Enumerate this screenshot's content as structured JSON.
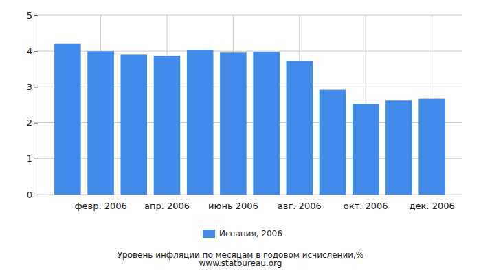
{
  "chart_data": {
    "type": "bar",
    "title": "Уровень инфляции по месяцам в годовом исчислении,%",
    "subtitle": "www.statbureau.org",
    "categories": [
      null,
      "февр. 2006",
      null,
      "апр. 2006",
      null,
      "июнь 2006",
      null,
      "авг. 2006",
      null,
      "окт. 2006",
      null,
      "дек. 2006"
    ],
    "series": [
      {
        "name": "Испания, 2006",
        "color": "#428bea",
        "values": [
          4.2,
          4.0,
          3.9,
          3.87,
          4.04,
          3.96,
          3.98,
          3.73,
          2.92,
          2.52,
          2.62,
          2.67
        ]
      }
    ],
    "ylim": [
      0,
      5
    ],
    "yticks": [
      0,
      1,
      2,
      3,
      4,
      5
    ],
    "grid": true,
    "legend": "bottom"
  }
}
